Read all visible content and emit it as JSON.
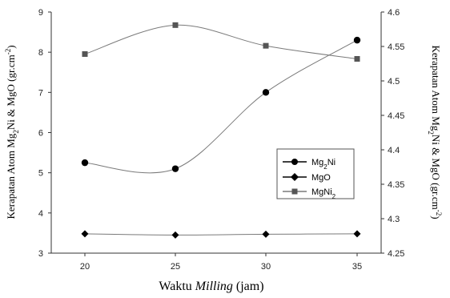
{
  "chart_data": {
    "type": "line",
    "x": [
      20,
      25,
      30,
      35
    ],
    "xlabel": {
      "prefix": "Waktu ",
      "italic": "Milling",
      "suffix": " (jam)"
    },
    "ylabel_left": {
      "base": "Kerapatan Atom Mg",
      "sub": "2",
      "mid": "Ni & MgO (gr.cm",
      "sup": "-2",
      "end": ")"
    },
    "ylabel_right": {
      "base": "Kerapatan Atom Mg",
      "sub": "2",
      "mid": "Ni & MgO (gr.cm",
      "sup": "-2",
      "end": ")"
    },
    "x_ticks": [
      20,
      25,
      30,
      35
    ],
    "y_left": {
      "ylim": [
        3,
        9
      ],
      "ticks": [
        3,
        4,
        5,
        6,
        7,
        8,
        9
      ]
    },
    "y_right": {
      "ylim": [
        4.25,
        4.6
      ],
      "ticks": [
        4.25,
        4.3,
        4.35,
        4.4,
        4.45,
        4.5,
        4.55,
        4.6
      ],
      "tick_labels": [
        "4.25",
        "4.3",
        "4.35",
        "4.4",
        "4.45",
        "4.5",
        "4.55",
        "4.6"
      ]
    },
    "series": [
      {
        "name": "Mg2Ni",
        "name_base": "Mg",
        "name_sub": "2",
        "name_end": "Ni",
        "axis": "left",
        "marker": "circle",
        "values": [
          5.25,
          5.1,
          7.0,
          8.3
        ]
      },
      {
        "name": "MgO",
        "name_base": "MgO",
        "name_sub": "",
        "name_end": "",
        "axis": "left",
        "marker": "diamond",
        "values": [
          3.48,
          3.45,
          3.47,
          3.48
        ]
      },
      {
        "name": "MgNi2",
        "name_base": "MgNi",
        "name_sub": "2",
        "name_end": "",
        "axis": "right",
        "marker": "square",
        "values": [
          4.539,
          4.581,
          4.551,
          4.532
        ]
      }
    ],
    "grid": false,
    "legend_position": "right-middle",
    "colors": {
      "line": "#7a7a7a",
      "marker_dark": "#000000",
      "marker_square": "#555555",
      "axis": "#333333"
    }
  }
}
